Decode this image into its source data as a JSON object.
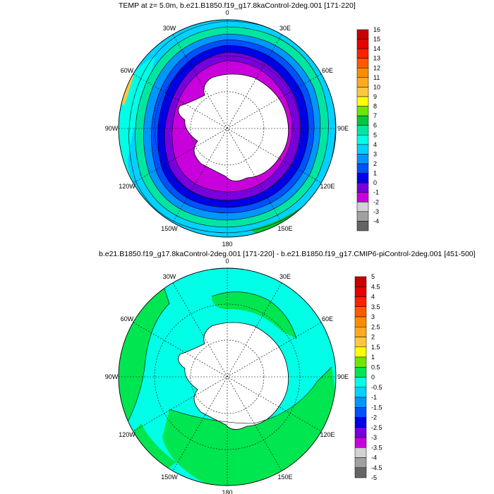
{
  "panel_top": {
    "title": "TEMP at z=   5.0m, b.e21.B1850.f19_g17.8kaControl-2deg.001 [171-220]",
    "longitude_labels": [
      "0",
      "30E",
      "60E",
      "90E",
      "120E",
      "150E",
      "180",
      "150W",
      "120W",
      "90W",
      "60W",
      "30W"
    ],
    "colorbar": {
      "labels": [
        "16",
        "15",
        "14",
        "13",
        "12",
        "11",
        "10",
        "9",
        "8",
        "7",
        "6",
        "5",
        "4",
        "3",
        "2",
        "1",
        "0",
        "-1",
        "-2",
        "-3",
        "-4"
      ],
      "colors": [
        "#c80000",
        "#e60000",
        "#ff2000",
        "#ff5a00",
        "#ff8c00",
        "#ffaa1e",
        "#ffc83c",
        "#ffff00",
        "#6ee600",
        "#00c83c",
        "#00e6a0",
        "#00ffe6",
        "#00d2ff",
        "#0096ff",
        "#0050ff",
        "#0000e6",
        "#7800dc",
        "#c800dc",
        "#d2d2d2",
        "#a0a0a0",
        "#646464"
      ]
    }
  },
  "panel_bottom": {
    "title": "b.e21.B1850.f19_g17.8kaControl-2deg.001 [171-220] - b.e21.B1850.f19_g17.CMIP6-piControl-2deg.001 [451-500]",
    "longitude_labels": [
      "0",
      "30E",
      "60E",
      "90E",
      "120E",
      "150E",
      "180",
      "150W",
      "120W",
      "90W",
      "60W",
      "30W"
    ],
    "colorbar": {
      "labels": [
        "5",
        "4.5",
        "4",
        "3.5",
        "3",
        "2.5",
        "2",
        "1.5",
        "1",
        "0.5",
        "0",
        "-0.5",
        "-1",
        "-1.5",
        "-2",
        "-2.5",
        "-3",
        "-3.5",
        "-4",
        "-4.5",
        "-5"
      ],
      "colors": [
        "#c80000",
        "#e60000",
        "#ff2000",
        "#ff5a00",
        "#ff8c00",
        "#ffaa1e",
        "#ffc83c",
        "#ffff00",
        "#6ee600",
        "#00e650",
        "#00ffe6",
        "#00d2ff",
        "#0096ff",
        "#0050ff",
        "#0000e6",
        "#7800dc",
        "#c800dc",
        "#d2d2d2",
        "#a0a0a0",
        "#646464"
      ]
    }
  }
}
